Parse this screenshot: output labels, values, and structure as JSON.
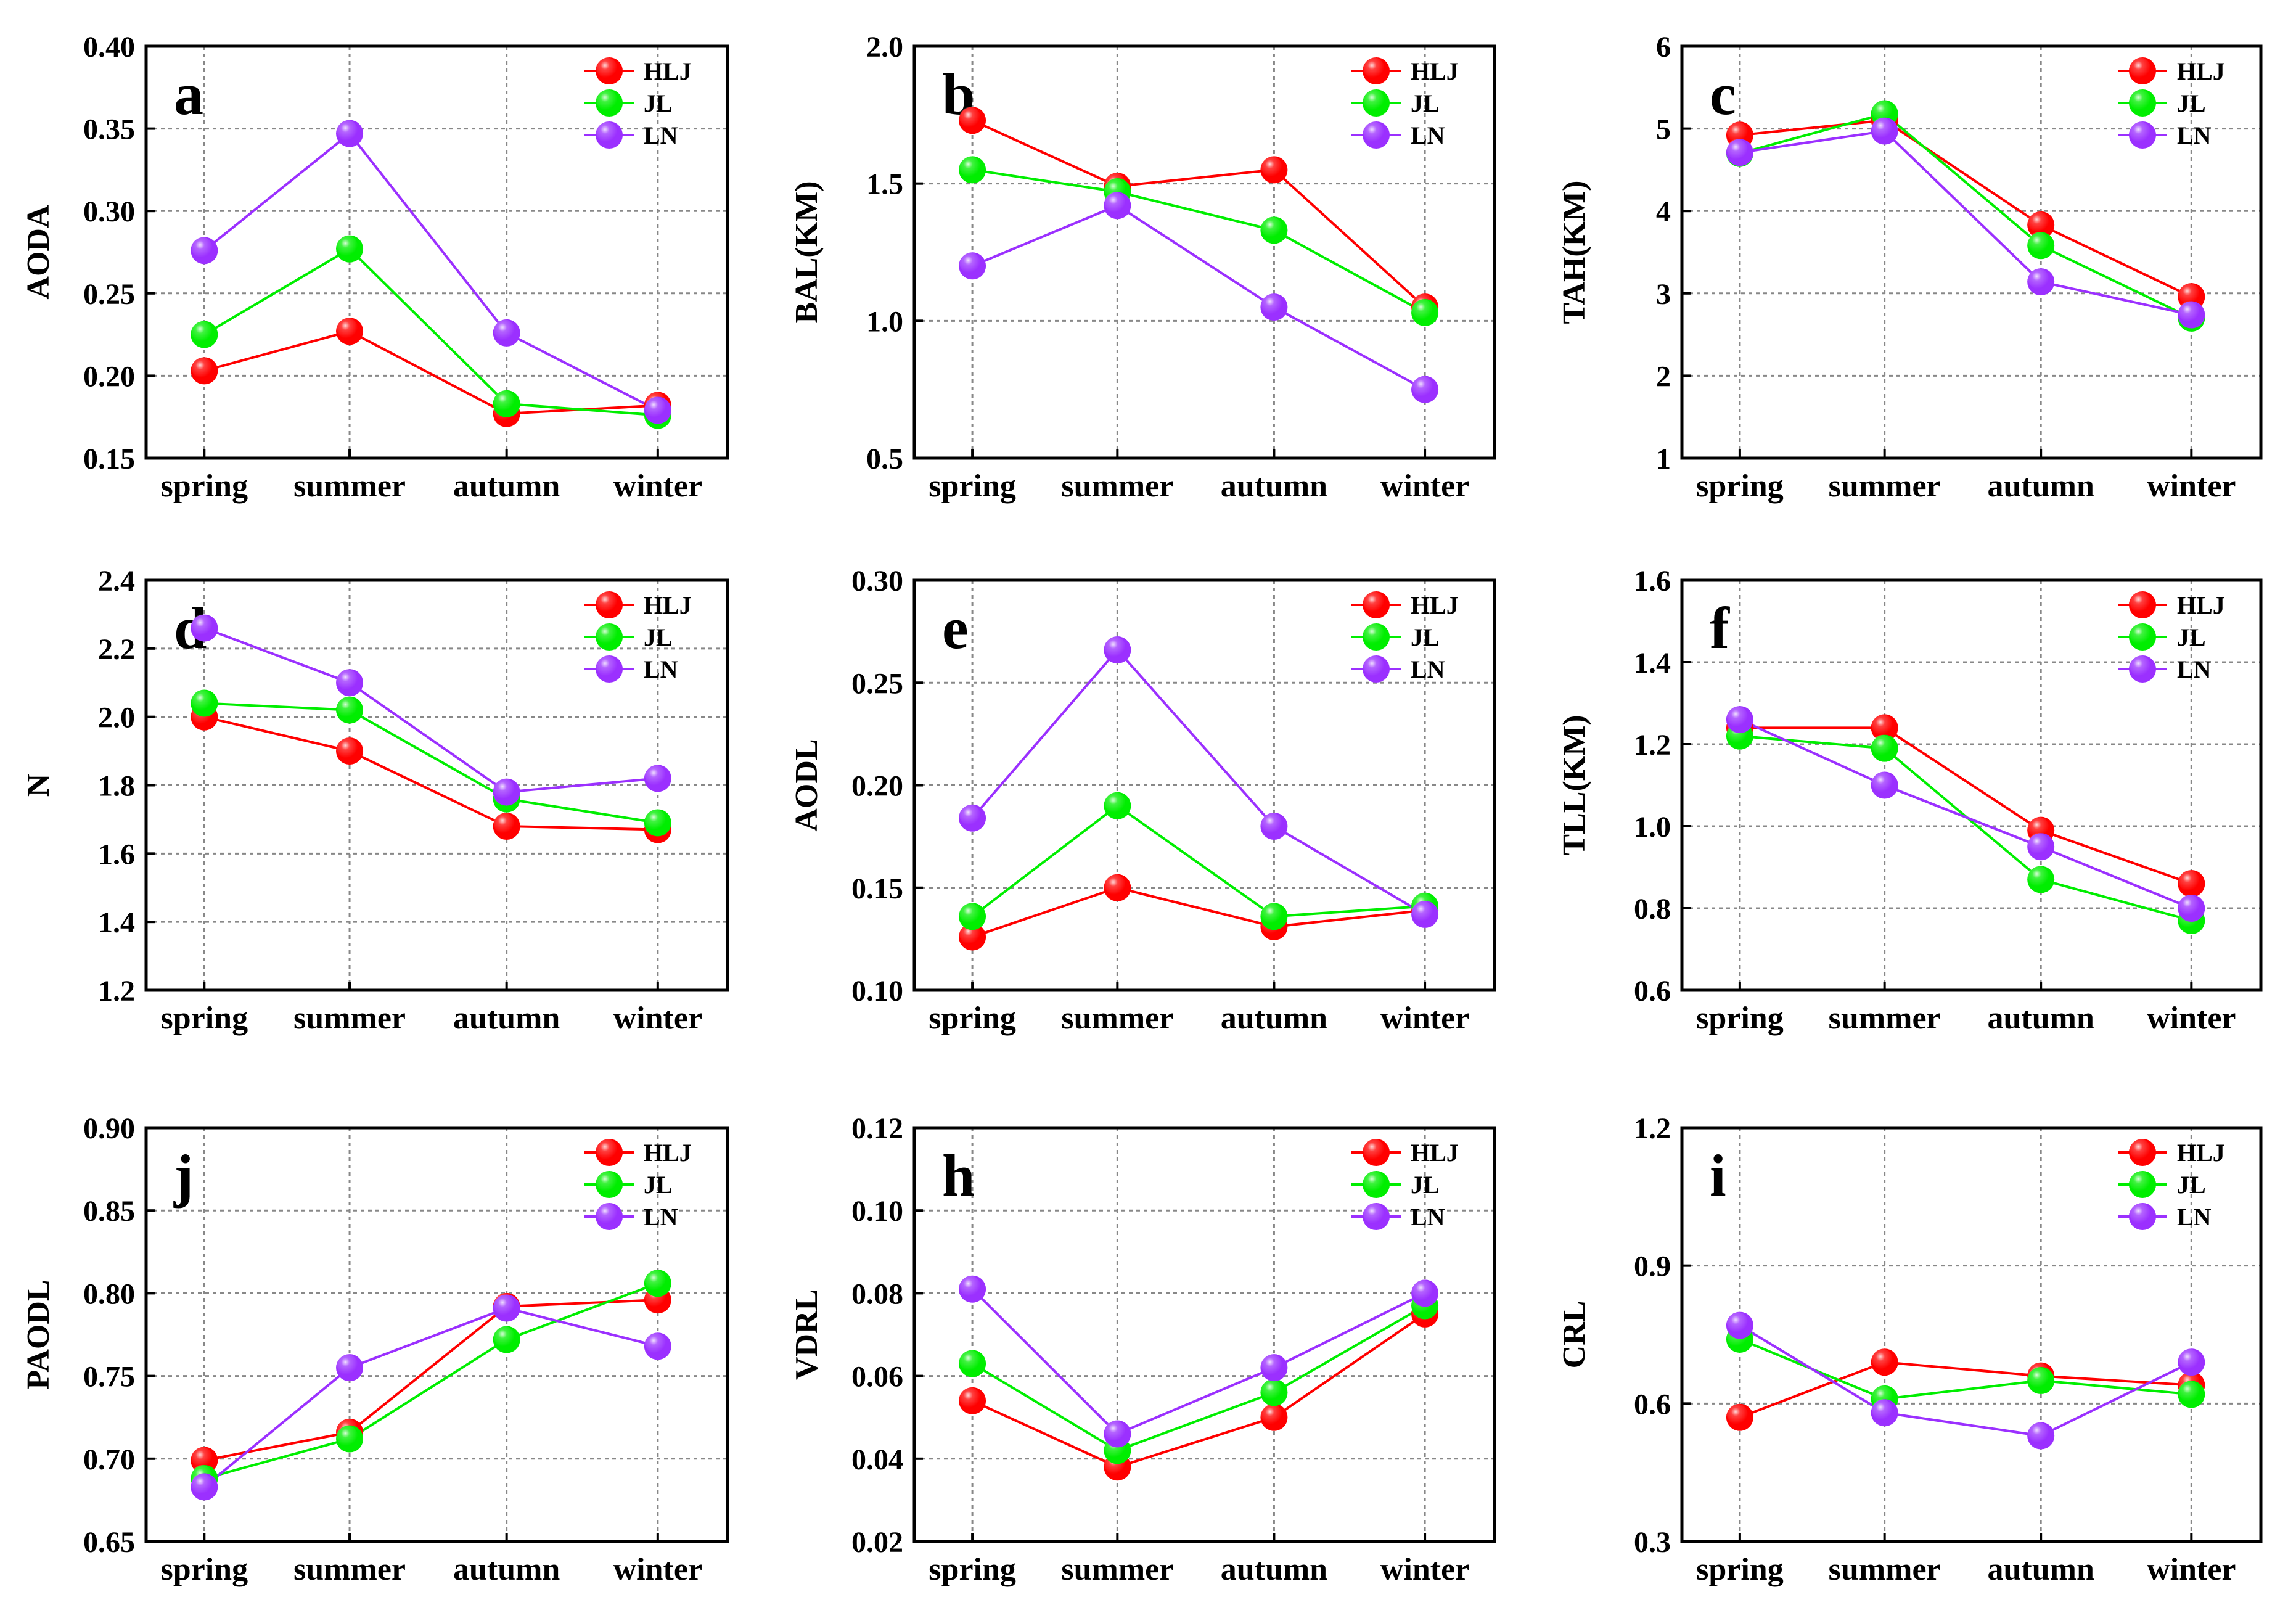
{
  "colors": {
    "HLJ": "#ff0000",
    "JL": "#00ee00",
    "LN": "#9b30ff",
    "frame": "#000000",
    "grid": "#888888"
  },
  "chart_data": [
    {
      "type": "line",
      "panel_label": "a",
      "ylabel": "AODA",
      "xlabel": "",
      "categories": [
        "spring",
        "summer",
        "autumn",
        "winter"
      ],
      "ylim": [
        0.15,
        0.4
      ],
      "yticks": [
        "0.15",
        "0.20",
        "0.25",
        "0.30",
        "0.35",
        "0.40"
      ],
      "legend_position": "top-right",
      "series": [
        {
          "name": "HLJ",
          "values": [
            0.203,
            0.227,
            0.177,
            0.182
          ]
        },
        {
          "name": "JL",
          "values": [
            0.225,
            0.277,
            0.183,
            0.176
          ]
        },
        {
          "name": "LN",
          "values": [
            0.276,
            0.347,
            0.226,
            0.179
          ]
        }
      ]
    },
    {
      "type": "line",
      "panel_label": "b",
      "ylabel": "BAL(KM)",
      "xlabel": "",
      "categories": [
        "spring",
        "summer",
        "autumn",
        "winter"
      ],
      "ylim": [
        0.5,
        2.0
      ],
      "yticks": [
        "0.5",
        "1.0",
        "1.5",
        "2.0"
      ],
      "legend_position": "top-right",
      "series": [
        {
          "name": "HLJ",
          "values": [
            1.73,
            1.49,
            1.55,
            1.05
          ]
        },
        {
          "name": "JL",
          "values": [
            1.55,
            1.47,
            1.33,
            1.03
          ]
        },
        {
          "name": "LN",
          "values": [
            1.2,
            1.42,
            1.05,
            0.75
          ]
        }
      ]
    },
    {
      "type": "line",
      "panel_label": "c",
      "ylabel": "TAH(KM)",
      "xlabel": "",
      "categories": [
        "spring",
        "summer",
        "autumn",
        "winter"
      ],
      "ylim": [
        1,
        6
      ],
      "yticks": [
        "1",
        "2",
        "3",
        "4",
        "5",
        "6"
      ],
      "legend_position": "top-right",
      "series": [
        {
          "name": "HLJ",
          "values": [
            4.92,
            5.1,
            3.83,
            2.96
          ]
        },
        {
          "name": "JL",
          "values": [
            4.7,
            5.18,
            3.58,
            2.7
          ]
        },
        {
          "name": "LN",
          "values": [
            4.71,
            4.97,
            3.14,
            2.74
          ]
        }
      ]
    },
    {
      "type": "line",
      "panel_label": "d",
      "ylabel": "N",
      "xlabel": "",
      "categories": [
        "spring",
        "summer",
        "autumn",
        "winter"
      ],
      "ylim": [
        1.2,
        2.4
      ],
      "yticks": [
        "1.2",
        "1.4",
        "1.6",
        "1.8",
        "2.0",
        "2.2",
        "2.4"
      ],
      "legend_position": "top-right",
      "series": [
        {
          "name": "HLJ",
          "values": [
            2.0,
            1.9,
            1.68,
            1.67
          ]
        },
        {
          "name": "JL",
          "values": [
            2.04,
            2.02,
            1.76,
            1.69
          ]
        },
        {
          "name": "LN",
          "values": [
            2.26,
            2.1,
            1.78,
            1.82
          ]
        }
      ]
    },
    {
      "type": "line",
      "panel_label": "e",
      "ylabel": "AODL",
      "xlabel": "",
      "categories": [
        "spring",
        "summer",
        "autumn",
        "winter"
      ],
      "ylim": [
        0.1,
        0.3
      ],
      "yticks": [
        "0.10",
        "0.15",
        "0.20",
        "0.25",
        "0.30"
      ],
      "legend_position": "top-right",
      "series": [
        {
          "name": "HLJ",
          "values": [
            0.126,
            0.15,
            0.131,
            0.139
          ]
        },
        {
          "name": "JL",
          "values": [
            0.136,
            0.19,
            0.136,
            0.141
          ]
        },
        {
          "name": "LN",
          "values": [
            0.184,
            0.266,
            0.18,
            0.137
          ]
        }
      ]
    },
    {
      "type": "line",
      "panel_label": "f",
      "ylabel": "TLL(KM)",
      "xlabel": "",
      "categories": [
        "spring",
        "summer",
        "autumn",
        "winter"
      ],
      "ylim": [
        0.6,
        1.6
      ],
      "yticks": [
        "0.6",
        "0.8",
        "1.0",
        "1.2",
        "1.4",
        "1.6"
      ],
      "legend_position": "top-right",
      "series": [
        {
          "name": "HLJ",
          "values": [
            1.24,
            1.24,
            0.99,
            0.86
          ]
        },
        {
          "name": "JL",
          "values": [
            1.22,
            1.19,
            0.87,
            0.77
          ]
        },
        {
          "name": "LN",
          "values": [
            1.26,
            1.1,
            0.95,
            0.8
          ]
        }
      ]
    },
    {
      "type": "line",
      "panel_label": "j",
      "ylabel": "PAODL",
      "xlabel": "",
      "categories": [
        "spring",
        "summer",
        "autumn",
        "winter"
      ],
      "ylim": [
        0.65,
        0.9
      ],
      "yticks": [
        "0.65",
        "0.70",
        "0.75",
        "0.80",
        "0.85",
        "0.90"
      ],
      "legend_position": "top-right",
      "series": [
        {
          "name": "HLJ",
          "values": [
            0.699,
            0.716,
            0.792,
            0.796
          ]
        },
        {
          "name": "JL",
          "values": [
            0.688,
            0.712,
            0.772,
            0.806
          ]
        },
        {
          "name": "LN",
          "values": [
            0.683,
            0.755,
            0.791,
            0.768
          ]
        }
      ]
    },
    {
      "type": "line",
      "panel_label": "h",
      "ylabel": "VDRL",
      "xlabel": "",
      "categories": [
        "spring",
        "summer",
        "autumn",
        "winter"
      ],
      "ylim": [
        0.02,
        0.12
      ],
      "yticks": [
        "0.02",
        "0.04",
        "0.06",
        "0.08",
        "0.10",
        "0.12"
      ],
      "legend_position": "top-right",
      "series": [
        {
          "name": "HLJ",
          "values": [
            0.054,
            0.038,
            0.05,
            0.075
          ]
        },
        {
          "name": "JL",
          "values": [
            0.063,
            0.042,
            0.056,
            0.077
          ]
        },
        {
          "name": "LN",
          "values": [
            0.081,
            0.046,
            0.062,
            0.08
          ]
        }
      ]
    },
    {
      "type": "line",
      "panel_label": "i",
      "ylabel": "CRL",
      "xlabel": "",
      "categories": [
        "spring",
        "summer",
        "autumn",
        "winter"
      ],
      "ylim": [
        0.3,
        1.2
      ],
      "yticks": [
        "0.3",
        "0.6",
        "0.9",
        "1.2"
      ],
      "legend_position": "top-right",
      "series": [
        {
          "name": "HLJ",
          "values": [
            0.57,
            0.69,
            0.66,
            0.64
          ]
        },
        {
          "name": "JL",
          "values": [
            0.74,
            0.61,
            0.65,
            0.62
          ]
        },
        {
          "name": "LN",
          "values": [
            0.77,
            0.58,
            0.53,
            0.69
          ]
        }
      ]
    }
  ]
}
